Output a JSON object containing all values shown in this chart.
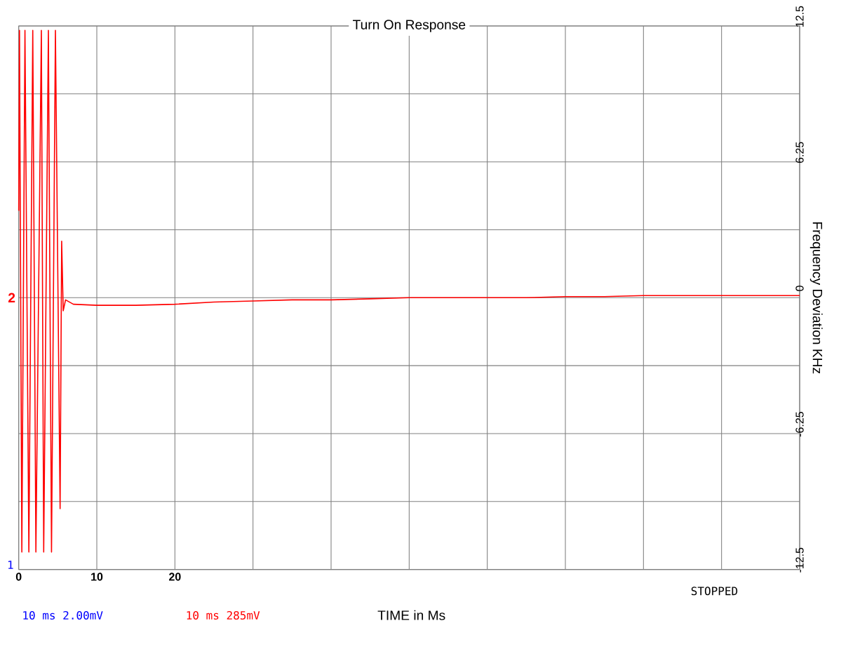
{
  "chart_data": {
    "type": "line",
    "title": "Turn On Response",
    "xlabel": "TIME in Ms",
    "ylabel": "Frequency Deviation KHz",
    "x": [
      0,
      0.1,
      0.4,
      0.8,
      1.3,
      1.8,
      2.2,
      2.9,
      3.2,
      3.8,
      4.2,
      4.7,
      5.3,
      5.5,
      5.7,
      6.0,
      7,
      10,
      15,
      20,
      25,
      30,
      35,
      40,
      45,
      50,
      55,
      60,
      65,
      70,
      75,
      80,
      85,
      90,
      95,
      100
    ],
    "series": [
      {
        "color": "#ff0000",
        "values": [
          4,
          12.3,
          -11.7,
          12.3,
          -11.7,
          12.3,
          -11.7,
          12.3,
          -11.7,
          12.3,
          -11.7,
          12.3,
          -9.7,
          2.6,
          -0.6,
          -0.1,
          -0.3,
          -0.35,
          -0.35,
          -0.3,
          -0.2,
          -0.15,
          -0.1,
          -0.1,
          -0.05,
          0,
          0,
          0,
          0,
          0.05,
          0.05,
          0.1,
          0.1,
          0.1,
          0.1,
          0.1
        ]
      }
    ],
    "xlim": [
      0,
      100
    ],
    "ylim": [
      -12.5,
      12.5
    ],
    "xticks": [
      0,
      10,
      20,
      {
        "value": 30,
        "label": null
      },
      {
        "value": 40,
        "label": null
      },
      {
        "value": 50,
        "label": null
      },
      {
        "value": 60,
        "label": null
      },
      {
        "value": 70,
        "label": null
      },
      {
        "value": 80,
        "label": null
      },
      {
        "value": 90,
        "label": null
      },
      {
        "value": 100,
        "label": null
      }
    ],
    "yticks": [
      -12.5,
      {
        "value": -9.375,
        "label": null
      },
      -6.25,
      {
        "value": -3.125,
        "label": null
      },
      0,
      {
        "value": 3.125,
        "label": null
      },
      6.25,
      {
        "value": 9.375,
        "label": null
      },
      12.5
    ],
    "grid": true,
    "marker": "none",
    "line_style": "solid",
    "annotations": [
      {
        "text": "2",
        "x": 0,
        "y": 0
      },
      "1",
      "10 ms 2.00mV",
      "10 ms 285mV",
      "STOPPED"
    ]
  }
}
